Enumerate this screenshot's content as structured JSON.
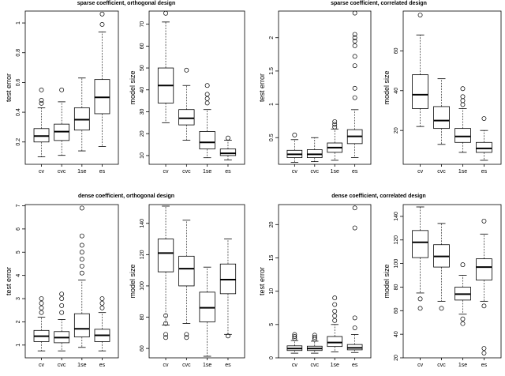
{
  "figure": {
    "titles": [
      "sparse coefficient, orthogonal design",
      "sparse coefficient, correlated design",
      "dense coefficient, orthogonal design",
      "dense coefficient, correlated design"
    ]
  },
  "chart_data": [
    {
      "type": "box",
      "group": 0,
      "title": "sparse coefficient, orthogonal design",
      "categories": [
        "cv",
        "cvc",
        "1se",
        "es"
      ],
      "ylabel": "test error",
      "ylim": [
        0.05,
        1.08
      ],
      "yticks": [
        0.2,
        0.4,
        0.6,
        0.8,
        1.0
      ],
      "boxes": [
        {
          "whislo": 0.1,
          "q1": 0.2,
          "med": 0.24,
          "q3": 0.29,
          "whishi": 0.43,
          "outliers": [
            0.46,
            0.48,
            0.55
          ]
        },
        {
          "whislo": 0.11,
          "q1": 0.21,
          "med": 0.27,
          "q3": 0.32,
          "whishi": 0.47,
          "outliers": [
            0.55
          ]
        },
        {
          "whislo": 0.14,
          "q1": 0.28,
          "med": 0.35,
          "q3": 0.43,
          "whishi": 0.63,
          "outliers": []
        },
        {
          "whislo": 0.17,
          "q1": 0.39,
          "med": 0.5,
          "q3": 0.62,
          "whishi": 0.94,
          "outliers": [
            0.99,
            1.06
          ]
        }
      ]
    },
    {
      "type": "box",
      "group": 0,
      "title": "",
      "categories": [
        "cv",
        "cvc",
        "1se",
        "es"
      ],
      "ylabel": "model size",
      "ylim": [
        6,
        76
      ],
      "yticks": [
        10,
        20,
        30,
        40,
        50,
        60,
        70
      ],
      "boxes": [
        {
          "whislo": 25,
          "q1": 34,
          "med": 42,
          "q3": 50,
          "whishi": 71,
          "outliers": [
            75
          ]
        },
        {
          "whislo": 17,
          "q1": 24,
          "med": 27,
          "q3": 31,
          "whishi": 42,
          "outliers": [
            49
          ]
        },
        {
          "whislo": 9,
          "q1": 13,
          "med": 16,
          "q3": 21,
          "whishi": 31,
          "outliers": [
            34,
            36,
            38,
            42
          ]
        },
        {
          "whislo": 8,
          "q1": 10,
          "med": 11,
          "q3": 13,
          "whishi": 17,
          "outliers": [
            18
          ]
        }
      ]
    },
    {
      "type": "box",
      "group": 1,
      "title": "sparse coefficient, correlated design",
      "categories": [
        "cv",
        "cvc",
        "1se",
        "es"
      ],
      "ylabel": "test error",
      "ylim": [
        0.1,
        2.4
      ],
      "yticks": [
        0.5,
        1.0,
        1.5,
        2.0
      ],
      "boxes": [
        {
          "whislo": 0.13,
          "q1": 0.2,
          "med": 0.25,
          "q3": 0.31,
          "whishi": 0.47,
          "outliers": [
            0.54
          ]
        },
        {
          "whislo": 0.14,
          "q1": 0.2,
          "med": 0.25,
          "q3": 0.32,
          "whishi": 0.5,
          "outliers": []
        },
        {
          "whislo": 0.16,
          "q1": 0.28,
          "med": 0.35,
          "q3": 0.42,
          "whishi": 0.63,
          "outliers": [
            0.66,
            0.7,
            0.74
          ]
        },
        {
          "whislo": 0.2,
          "q1": 0.41,
          "med": 0.52,
          "q3": 0.62,
          "whishi": 0.92,
          "outliers": [
            1.1,
            1.24,
            1.58,
            1.72,
            1.88,
            1.95,
            2.0,
            2.05,
            2.37
          ]
        }
      ]
    },
    {
      "type": "box",
      "group": 1,
      "title": "",
      "categories": [
        "cv",
        "cvc",
        "1se",
        "es"
      ],
      "ylabel": "model size",
      "ylim": [
        3,
        80
      ],
      "yticks": [
        20,
        40,
        60
      ],
      "boxes": [
        {
          "whislo": 22,
          "q1": 31,
          "med": 38,
          "q3": 48,
          "whishi": 68,
          "outliers": [
            78
          ]
        },
        {
          "whislo": 13,
          "q1": 21,
          "med": 25,
          "q3": 32,
          "whishi": 46,
          "outliers": []
        },
        {
          "whislo": 9,
          "q1": 14,
          "med": 17,
          "q3": 21,
          "whishi": 31,
          "outliers": [
            33,
            35,
            37,
            41
          ]
        },
        {
          "whislo": 5,
          "q1": 9,
          "med": 11,
          "q3": 14,
          "whishi": 20,
          "outliers": [
            26
          ]
        }
      ]
    },
    {
      "type": "box",
      "group": 2,
      "title": "dense coefficient, orthogonal design",
      "categories": [
        "cv",
        "cvc",
        "1se",
        "es"
      ],
      "ylabel": "test error",
      "ylim": [
        0.45,
        7.05
      ],
      "yticks": [
        1,
        2,
        3,
        4,
        5,
        6,
        7
      ],
      "boxes": [
        {
          "whislo": 0.75,
          "q1": 1.15,
          "med": 1.38,
          "q3": 1.63,
          "whishi": 2.2,
          "outliers": [
            2.4,
            2.6,
            2.8,
            3.0
          ]
        },
        {
          "whislo": 0.75,
          "q1": 1.1,
          "med": 1.32,
          "q3": 1.58,
          "whishi": 2.1,
          "outliers": [
            2.4,
            2.7,
            3.0,
            3.2
          ]
        },
        {
          "whislo": 0.9,
          "q1": 1.35,
          "med": 1.7,
          "q3": 2.35,
          "whishi": 3.8,
          "outliers": [
            4.1,
            4.4,
            4.7,
            5.0,
            5.3,
            5.7,
            6.9
          ]
        },
        {
          "whislo": 0.75,
          "q1": 1.15,
          "med": 1.42,
          "q3": 1.68,
          "whishi": 2.4,
          "outliers": [
            2.6,
            2.8,
            3.0
          ]
        }
      ]
    },
    {
      "type": "box",
      "group": 2,
      "title": "",
      "categories": [
        "cv",
        "cvc",
        "1se",
        "es"
      ],
      "ylabel": "model size",
      "ylim": [
        54,
        152
      ],
      "yticks": [
        60,
        80,
        100,
        120,
        140
      ],
      "boxes": [
        {
          "whislo": 75,
          "q1": 109,
          "med": 121,
          "q3": 130,
          "whishi": 151,
          "outliers": [
            67,
            69,
            76,
            81
          ]
        },
        {
          "whislo": 76,
          "q1": 100,
          "med": 111,
          "q3": 119,
          "whishi": 142,
          "outliers": [
            67,
            69
          ]
        },
        {
          "whislo": 55,
          "q1": 77,
          "med": 86,
          "q3": 96,
          "whishi": 112,
          "outliers": []
        },
        {
          "whislo": 69,
          "q1": 95,
          "med": 104,
          "q3": 114,
          "whishi": 130,
          "outliers": [
            68
          ]
        }
      ]
    },
    {
      "type": "box",
      "group": 3,
      "title": "dense coefficient, correlated design",
      "categories": [
        "cv",
        "cvc",
        "1se",
        "es"
      ],
      "ylabel": "test error",
      "ylim": [
        0,
        23
      ],
      "yticks": [
        0,
        5,
        10,
        15,
        20
      ],
      "boxes": [
        {
          "whislo": 0.7,
          "q1": 1.1,
          "med": 1.4,
          "q3": 1.8,
          "whishi": 2.6,
          "outliers": [
            2.9,
            3.2,
            3.5
          ]
        },
        {
          "whislo": 0.7,
          "q1": 1.1,
          "med": 1.4,
          "q3": 1.75,
          "whishi": 2.5,
          "outliers": [
            2.8,
            3.1,
            3.4
          ]
        },
        {
          "whislo": 0.9,
          "q1": 1.7,
          "med": 2.3,
          "q3": 3.2,
          "whishi": 5.0,
          "outliers": [
            5.6,
            6.3,
            7.0,
            8.0,
            9.0
          ]
        },
        {
          "whislo": 0.8,
          "q1": 1.2,
          "med": 1.5,
          "q3": 2.0,
          "whishi": 3.5,
          "outliers": [
            4.5,
            6.0,
            19.5,
            22.5
          ]
        }
      ]
    },
    {
      "type": "box",
      "group": 3,
      "title": "",
      "categories": [
        "cv",
        "cvc",
        "1se",
        "es"
      ],
      "ylabel": "model size",
      "ylim": [
        20,
        150
      ],
      "yticks": [
        20,
        40,
        60,
        80,
        100,
        120,
        140
      ],
      "boxes": [
        {
          "whislo": 75,
          "q1": 105,
          "med": 118,
          "q3": 128,
          "whishi": 148,
          "outliers": [
            62,
            70
          ]
        },
        {
          "whislo": 68,
          "q1": 97,
          "med": 106,
          "q3": 116,
          "whishi": 134,
          "outliers": [
            62
          ]
        },
        {
          "whislo": 57,
          "q1": 69,
          "med": 74,
          "q3": 80,
          "whishi": 90,
          "outliers": [
            49,
            53,
            99
          ]
        },
        {
          "whislo": 68,
          "q1": 86,
          "med": 97,
          "q3": 104,
          "whishi": 125,
          "outliers": [
            24,
            28,
            64,
            136
          ]
        }
      ]
    }
  ]
}
